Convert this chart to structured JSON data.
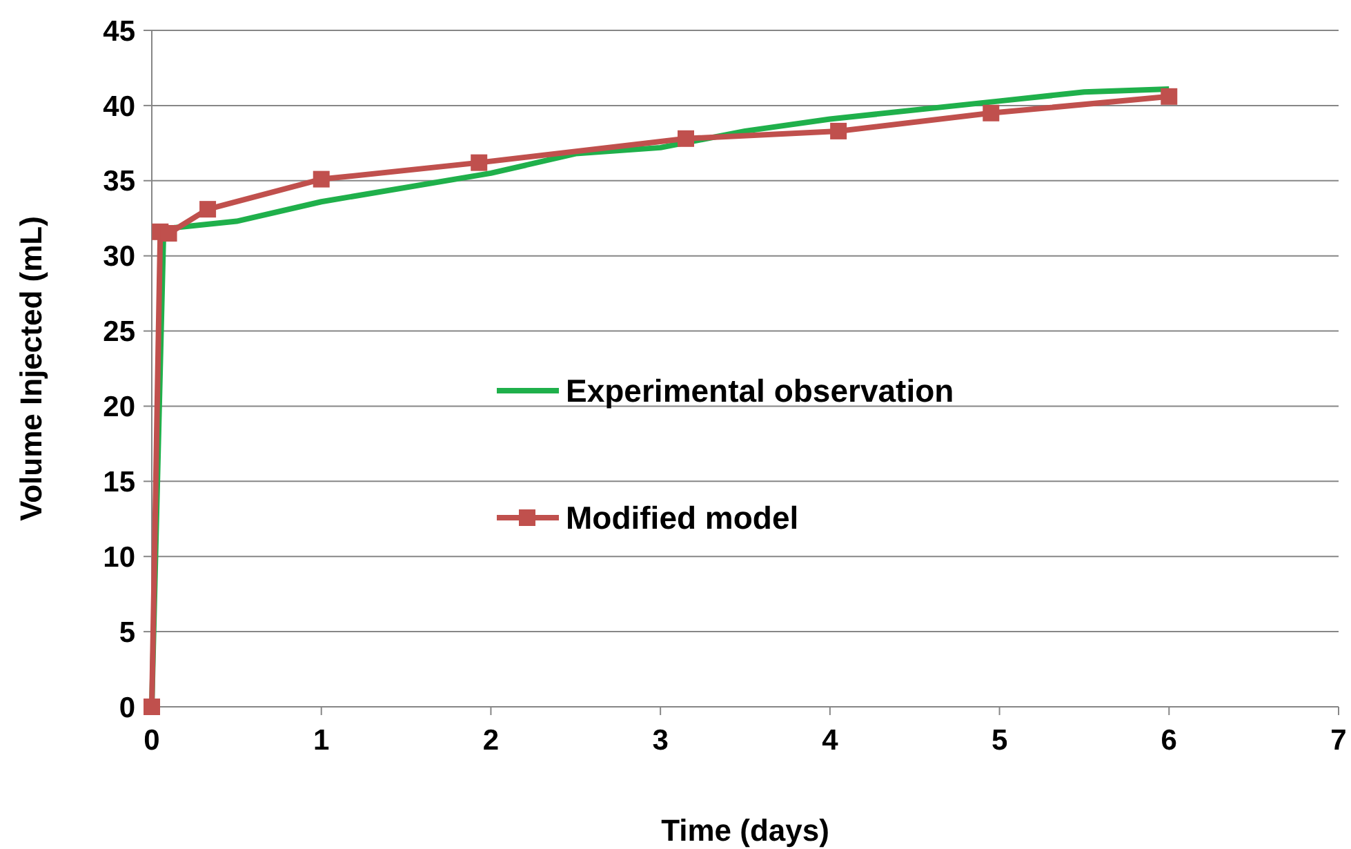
{
  "chart_data": {
    "type": "line",
    "xlabel": "Time (days)",
    "ylabel": "Volume Injected (mL)",
    "xlim": [
      0,
      7
    ],
    "xticks": [
      0,
      1,
      2,
      3,
      4,
      5,
      6,
      7
    ],
    "ylim": [
      0,
      45
    ],
    "yticks": [
      0,
      5,
      10,
      15,
      20,
      25,
      30,
      35,
      40,
      45
    ],
    "grid": "y",
    "legend": "right",
    "series": [
      {
        "name": "Experimental observation",
        "color": "#1fb04b",
        "marker": "none",
        "x": [
          0,
          0.07,
          0.5,
          1,
          2,
          2.5,
          3,
          3.5,
          4,
          5,
          5.5,
          6
        ],
        "values": [
          0,
          31.8,
          32.3,
          33.6,
          35.5,
          36.8,
          37.2,
          38.3,
          39.1,
          40.3,
          40.9,
          41.1
        ]
      },
      {
        "name": "Modified model",
        "color": "#c0504d",
        "marker": "square",
        "x": [
          0,
          0.05,
          0.1,
          0.33,
          1,
          1.93,
          3.15,
          4.05,
          4.95,
          6
        ],
        "values": [
          0,
          31.6,
          31.5,
          33.1,
          35.1,
          36.2,
          37.8,
          38.3,
          39.5,
          40.6
        ]
      }
    ]
  }
}
